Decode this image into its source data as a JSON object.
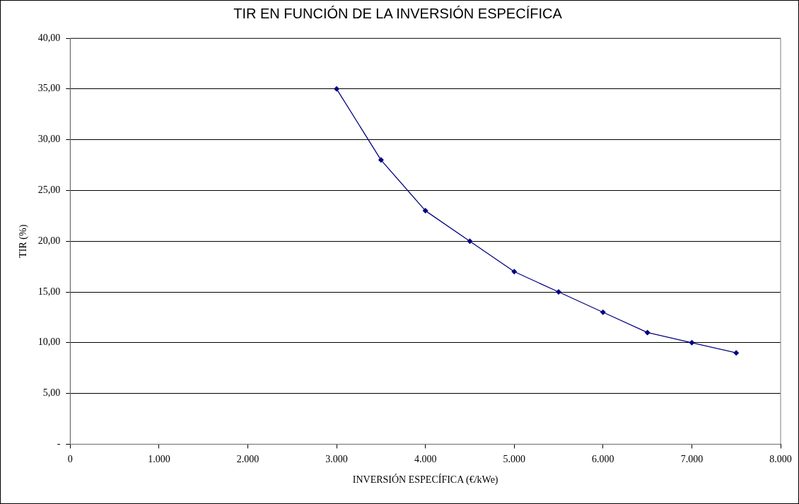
{
  "chart_data": {
    "type": "line",
    "title": "TIR EN FUNCIÓN DE LA INVERSIÓN ESPECÍFICA",
    "xlabel": "INVERSIÓN ESPECÍFICA (€/kWe)",
    "ylabel": "TIR (%)",
    "x": [
      3000,
      3500,
      4000,
      4500,
      5000,
      5500,
      6000,
      6500,
      7000,
      7500
    ],
    "series": [
      {
        "color": "#000080",
        "values": [
          35,
          28,
          23,
          20,
          17,
          15,
          13,
          11,
          10,
          9
        ]
      }
    ],
    "xlim": [
      0,
      8000
    ],
    "xticks": [
      {
        "value": 0,
        "label": "0"
      },
      {
        "value": 1000,
        "label": "1.000"
      },
      {
        "value": 2000,
        "label": "2.000"
      },
      {
        "value": 3000,
        "label": "3.000"
      },
      {
        "value": 4000,
        "label": "4.000"
      },
      {
        "value": 5000,
        "label": "5.000"
      },
      {
        "value": 6000,
        "label": "6.000"
      },
      {
        "value": 7000,
        "label": "7.000"
      },
      {
        "value": 8000,
        "label": "8.000"
      }
    ],
    "ylim": [
      0,
      40
    ],
    "yticks": [
      {
        "value": 0,
        "label": "-"
      },
      {
        "value": 5,
        "label": "5,00"
      },
      {
        "value": 10,
        "label": "10,00"
      },
      {
        "value": 15,
        "label": "15,00"
      },
      {
        "value": 20,
        "label": "20,00"
      },
      {
        "value": 25,
        "label": "25,00"
      },
      {
        "value": 30,
        "label": "30,00"
      },
      {
        "value": 35,
        "label": "35,00"
      },
      {
        "value": 40,
        "label": "40,00"
      }
    ],
    "grid": "y",
    "legend": false,
    "marker": "diamond",
    "line_style": "solid"
  }
}
